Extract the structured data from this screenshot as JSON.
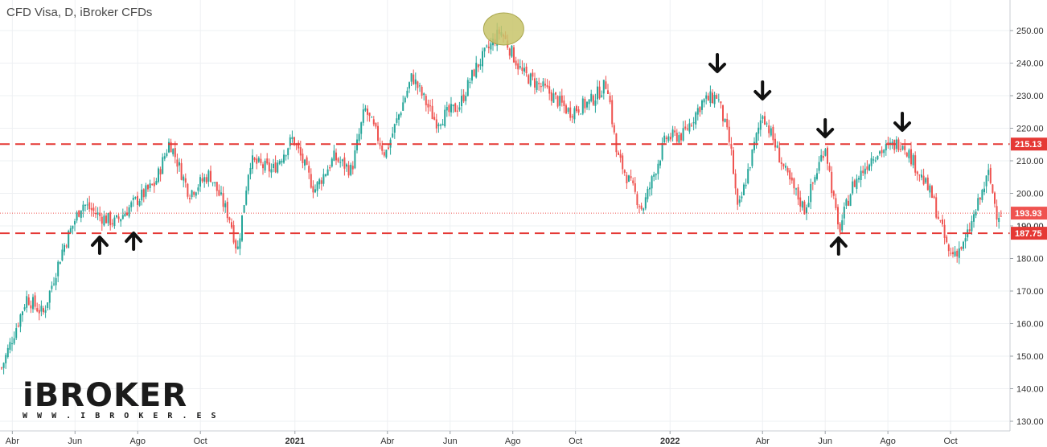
{
  "header": {
    "title": "CFD Visa, D, iBroker CFDs"
  },
  "logo": {
    "wordmark": "iBROKER",
    "url": "W W W . I B R O K E R . E S"
  },
  "chart_data": {
    "type": "candlestick",
    "title": "CFD Visa, D, iBroker CFDs",
    "ylim": [
      127,
      258
    ],
    "y_ticks": [
      130,
      140,
      150,
      160,
      170,
      180,
      190,
      200,
      210,
      220,
      230,
      240,
      250
    ],
    "x_tick_labels": [
      "Abr",
      "Jun",
      "Ago",
      "Oct",
      "2021",
      "Abr",
      "Jun",
      "Ago",
      "Oct",
      "2022",
      "Abr",
      "Jun",
      "Ago",
      "Oct"
    ],
    "grid": true,
    "colors": {
      "up": "#26a69a",
      "down": "#ef5350",
      "level": "#e53935",
      "highlight": "#c8c46a"
    },
    "price_series": [
      [
        "2020-03-20",
        145
      ],
      [
        "2020-04-15",
        168
      ],
      [
        "2020-05-01",
        163
      ],
      [
        "2020-05-20",
        183
      ],
      [
        "2020-06-08",
        197
      ],
      [
        "2020-06-25",
        193
      ],
      [
        "2020-07-10",
        191
      ],
      [
        "2020-07-28",
        197
      ],
      [
        "2020-08-18",
        203
      ],
      [
        "2020-09-01",
        216
      ],
      [
        "2020-09-20",
        200
      ],
      [
        "2020-10-10",
        206
      ],
      [
        "2020-10-30",
        192
      ],
      [
        "2020-11-06",
        182
      ],
      [
        "2020-11-18",
        210
      ],
      [
        "2020-12-10",
        207
      ],
      [
        "2020-12-30",
        217
      ],
      [
        "2021-01-20",
        201
      ],
      [
        "2021-02-08",
        211
      ],
      [
        "2021-02-25",
        207
      ],
      [
        "2021-03-10",
        226
      ],
      [
        "2021-03-30",
        212
      ],
      [
        "2021-04-25",
        236
      ],
      [
        "2021-05-18",
        222
      ],
      [
        "2021-06-10",
        227
      ],
      [
        "2021-06-25",
        238
      ],
      [
        "2021-07-20",
        250
      ],
      [
        "2021-08-10",
        237
      ],
      [
        "2021-09-05",
        231
      ],
      [
        "2021-09-25",
        225
      ],
      [
        "2021-10-15",
        228
      ],
      [
        "2021-11-01",
        234
      ],
      [
        "2021-11-10",
        212
      ],
      [
        "2021-12-05",
        195
      ],
      [
        "2021-12-28",
        217
      ],
      [
        "2022-01-14",
        218
      ],
      [
        "2022-02-01",
        228
      ],
      [
        "2022-02-16",
        230
      ],
      [
        "2022-03-01",
        214
      ],
      [
        "2022-03-08",
        194
      ],
      [
        "2022-04-01",
        225
      ],
      [
        "2022-04-25",
        205
      ],
      [
        "2022-05-12",
        195
      ],
      [
        "2022-06-01",
        215
      ],
      [
        "2022-06-14",
        188
      ],
      [
        "2022-06-27",
        202
      ],
      [
        "2022-07-18",
        212
      ],
      [
        "2022-08-15",
        216
      ],
      [
        "2022-09-13",
        199
      ],
      [
        "2022-09-30",
        181
      ],
      [
        "2022-10-14",
        184
      ],
      [
        "2022-11-07",
        206
      ],
      [
        "2022-11-15",
        194
      ]
    ],
    "levels": [
      {
        "value": 215.13,
        "label": "215.13"
      },
      {
        "value": 187.75,
        "label": "187.75"
      }
    ],
    "last_price": {
      "value": 193.93,
      "label": "193.93"
    },
    "hidden_axis_label": "190.00",
    "annotations": {
      "down_arrows": [
        "2022-02-16",
        "2022-04-01",
        "2022-06-01",
        "2022-08-15"
      ],
      "up_arrows": [
        "2020-06-25",
        "2020-07-28",
        "2022-06-14"
      ],
      "highlight_ellipse": {
        "date": "2021-07-20",
        "value": 251
      }
    }
  }
}
